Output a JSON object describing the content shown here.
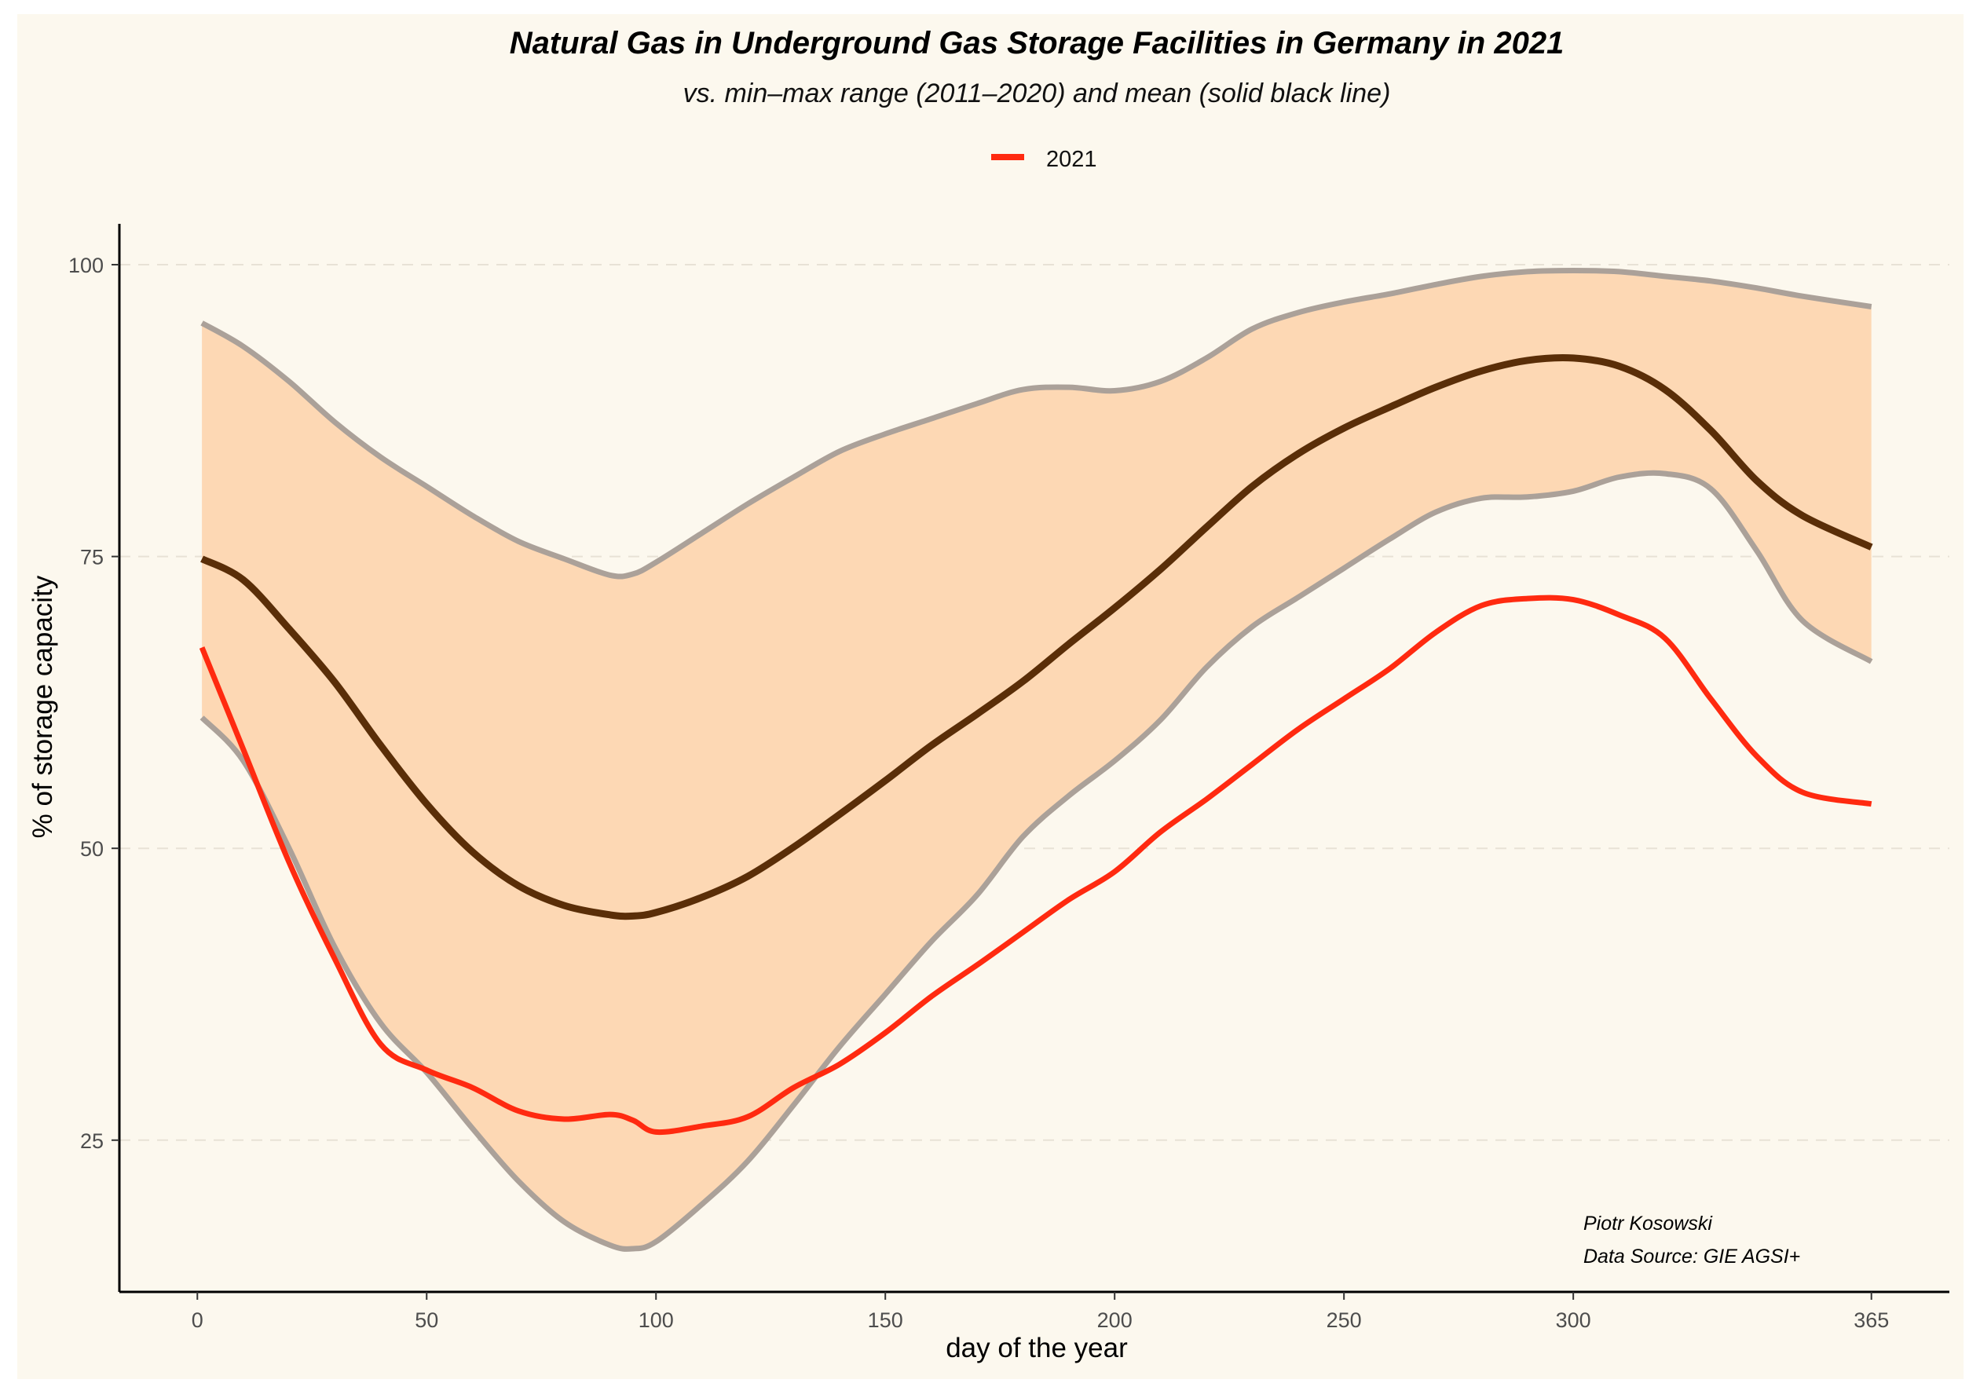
{
  "chart_data": {
    "type": "line",
    "title": "Natural Gas in Underground Gas Storage Facilities in Germany in 2021",
    "subtitle": "vs. min–max range (2011–2020) and mean (solid black line)",
    "xlabel": "day of the year",
    "ylabel": "% of storage capacity",
    "xlim": [
      -17,
      382
    ],
    "ylim": [
      12,
      103.5
    ],
    "x_ticks": [
      0,
      50,
      100,
      150,
      200,
      250,
      300,
      365
    ],
    "y_ticks": [
      25,
      50,
      75,
      100
    ],
    "grid": "horizontal dashed",
    "legend_position": "top",
    "legend": [
      {
        "label": "2021",
        "color": "#ff2a10"
      }
    ],
    "annotations": [
      "Piotr Kosowski",
      "Data Source: GIE AGSI+"
    ],
    "colors": {
      "panel_background": "#fcf8ee",
      "range_fill": "#fdd8b4",
      "range_edge": "#aba199",
      "mean": "#5a2e08",
      "series_2021": "#ff2a10",
      "axis": "#000000",
      "grid": "#e8e2d6"
    },
    "x": [
      1,
      10,
      20,
      30,
      40,
      50,
      60,
      70,
      80,
      90,
      95,
      100,
      110,
      120,
      130,
      140,
      150,
      160,
      170,
      180,
      190,
      200,
      210,
      220,
      230,
      240,
      250,
      260,
      270,
      280,
      290,
      300,
      310,
      320,
      330,
      340,
      350,
      365
    ],
    "series": [
      {
        "name": "max (2011–2020)",
        "values": [
          95.0,
          93.0,
          90.0,
          86.5,
          83.5,
          81.0,
          78.5,
          76.3,
          74.8,
          73.4,
          73.5,
          74.5,
          77.0,
          79.5,
          81.8,
          84.0,
          85.5,
          86.8,
          88.1,
          89.3,
          89.5,
          89.2,
          90.0,
          92.0,
          94.5,
          95.9,
          96.8,
          97.5,
          98.3,
          99.0,
          99.4,
          99.5,
          99.4,
          99.0,
          98.6,
          98.0,
          97.3,
          96.4
        ]
      },
      {
        "name": "min (2011–2020)",
        "values": [
          61.2,
          57.5,
          50.0,
          41.5,
          35.0,
          30.8,
          26.0,
          21.5,
          18.0,
          16.0,
          15.7,
          16.3,
          19.5,
          23.2,
          28.0,
          33.0,
          37.5,
          42.0,
          46.0,
          51.0,
          54.5,
          57.5,
          61.0,
          65.5,
          69.0,
          71.5,
          74.0,
          76.5,
          78.8,
          80.0,
          80.1,
          80.6,
          81.8,
          82.1,
          80.8,
          75.5,
          69.5,
          66.0
        ]
      },
      {
        "name": "mean (2011–2020)",
        "values": [
          74.8,
          73.0,
          68.8,
          64.2,
          58.8,
          53.8,
          49.7,
          46.8,
          45.1,
          44.3,
          44.2,
          44.5,
          45.8,
          47.6,
          50.1,
          52.9,
          55.8,
          58.8,
          61.5,
          64.3,
          67.5,
          70.6,
          73.9,
          77.5,
          81.0,
          83.8,
          86.0,
          87.8,
          89.5,
          90.9,
          91.8,
          92.0,
          91.3,
          89.3,
          85.8,
          81.5,
          78.5,
          75.8
        ]
      },
      {
        "name": "2021",
        "values": [
          67.2,
          58.5,
          48.8,
          40.5,
          33.2,
          31.0,
          29.5,
          27.5,
          26.8,
          27.2,
          26.7,
          25.7,
          26.2,
          27.0,
          29.5,
          31.5,
          34.2,
          37.3,
          40.0,
          42.8,
          45.6,
          48.0,
          51.4,
          54.2,
          57.2,
          60.2,
          62.8,
          65.4,
          68.5,
          70.8,
          71.4,
          71.3,
          70.0,
          68.0,
          62.8,
          57.9,
          54.8,
          53.8
        ]
      }
    ]
  }
}
